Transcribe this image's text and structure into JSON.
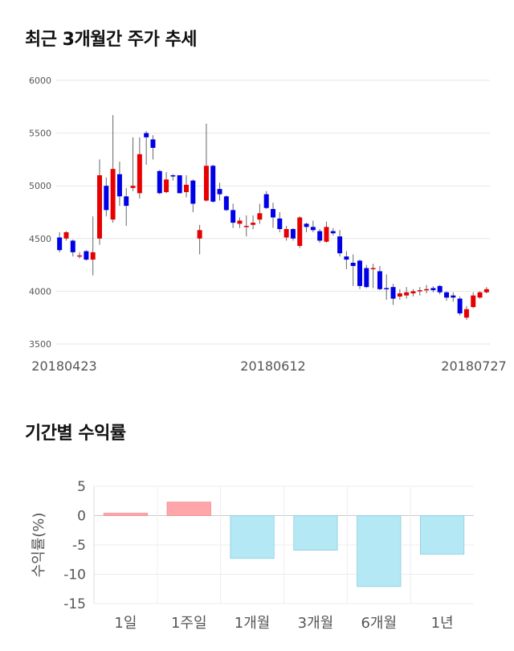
{
  "sections": {
    "price_title": "최근 3개월간 주가 추세",
    "return_title": "기간별 수익률"
  },
  "colors": {
    "up": "#e60000",
    "down": "#0000e6",
    "positive_bar": "#ffa6aa",
    "negative_bar": "#b3e8f4",
    "grid": "#e6e6e6"
  },
  "chart_data": [
    {
      "type": "candlestick",
      "title": "최근 3개월간 주가 추세",
      "ylim": [
        3500,
        6000
      ],
      "yticks": [
        3500,
        4000,
        4500,
        5000,
        5500,
        6000
      ],
      "xtick_labels": [
        "20180423",
        "20180612",
        "20180727"
      ],
      "grid": true,
      "candles": [
        [
          4510,
          4390,
          4560,
          4370
        ],
        [
          4500,
          4560,
          4570,
          4480
        ],
        [
          4480,
          4370,
          4490,
          4330
        ],
        [
          4330,
          4340,
          4370,
          4310
        ],
        [
          4380,
          4300,
          4390,
          4290
        ],
        [
          4300,
          4370,
          4710,
          4150
        ],
        [
          4500,
          5100,
          5250,
          4440
        ],
        [
          5000,
          4770,
          5080,
          4710
        ],
        [
          4680,
          5160,
          5670,
          4650
        ],
        [
          5110,
          4900,
          5230,
          4810
        ],
        [
          4900,
          4810,
          4980,
          4620
        ],
        [
          4980,
          5000,
          5460,
          4950
        ],
        [
          4930,
          5300,
          5460,
          4880
        ],
        [
          5500,
          5460,
          5520,
          5200
        ],
        [
          5440,
          5360,
          5480,
          5250
        ],
        [
          5140,
          4930,
          5150,
          4920
        ],
        [
          4940,
          5060,
          5130,
          4930
        ],
        [
          5100,
          5090,
          5110,
          5050
        ],
        [
          5100,
          4930,
          5100,
          4930
        ],
        [
          4940,
          5010,
          5100,
          4890
        ],
        [
          5050,
          4830,
          5060,
          4750
        ],
        [
          4500,
          4580,
          4630,
          4350
        ],
        [
          4860,
          5190,
          5590,
          4850
        ],
        [
          5190,
          4850,
          5200,
          4840
        ],
        [
          4970,
          4920,
          5030,
          4860
        ],
        [
          4900,
          4770,
          4910,
          4760
        ],
        [
          4770,
          4650,
          4830,
          4600
        ],
        [
          4640,
          4670,
          4700,
          4600
        ],
        [
          4610,
          4620,
          4720,
          4520
        ],
        [
          4630,
          4650,
          4720,
          4590
        ],
        [
          4680,
          4740,
          4830,
          4640
        ],
        [
          4920,
          4790,
          4950,
          4780
        ],
        [
          4780,
          4700,
          4840,
          4600
        ],
        [
          4690,
          4590,
          4750,
          4560
        ],
        [
          4510,
          4590,
          4620,
          4480
        ],
        [
          4590,
          4500,
          4600,
          4480
        ],
        [
          4430,
          4700,
          4710,
          4410
        ],
        [
          4640,
          4610,
          4650,
          4560
        ],
        [
          4610,
          4580,
          4670,
          4560
        ],
        [
          4570,
          4480,
          4590,
          4460
        ],
        [
          4470,
          4610,
          4660,
          4460
        ],
        [
          4570,
          4550,
          4600,
          4530
        ],
        [
          4520,
          4360,
          4580,
          4330
        ],
        [
          4330,
          4300,
          4380,
          4210
        ],
        [
          4270,
          4240,
          4350,
          4050
        ],
        [
          4290,
          4050,
          4300,
          4020
        ],
        [
          4220,
          4040,
          4250,
          4030
        ],
        [
          4220,
          4220,
          4260,
          4030
        ],
        [
          4190,
          4020,
          4240,
          4010
        ],
        [
          4030,
          4020,
          4160,
          3920
        ],
        [
          4040,
          3930,
          4070,
          3870
        ],
        [
          3950,
          3980,
          4020,
          3920
        ],
        [
          3960,
          3990,
          4040,
          3930
        ],
        [
          3980,
          4000,
          4020,
          3950
        ],
        [
          4000,
          4010,
          4040,
          3960
        ],
        [
          4020,
          4020,
          4060,
          3980
        ],
        [
          4030,
          4010,
          4050,
          3990
        ],
        [
          4050,
          3990,
          4060,
          3970
        ],
        [
          3990,
          3940,
          4000,
          3910
        ],
        [
          3960,
          3940,
          3990,
          3900
        ],
        [
          3930,
          3790,
          3950,
          3770
        ],
        [
          3750,
          3830,
          3860,
          3730
        ],
        [
          3850,
          3960,
          3990,
          3840
        ],
        [
          3940,
          3990,
          4000,
          3930
        ],
        [
          3990,
          4020,
          4040,
          3980
        ]
      ]
    },
    {
      "type": "bar",
      "title": "기간별 수익률",
      "ylabel": "수익률(%)",
      "ylim": [
        -15,
        5
      ],
      "yticks": [
        5,
        0,
        -5,
        -10,
        -15
      ],
      "categories": [
        "1일",
        "1주일",
        "1개월",
        "3개월",
        "6개월",
        "1년"
      ],
      "values": [
        0.4,
        2.3,
        -7.3,
        -5.9,
        -12.1,
        -6.6
      ]
    }
  ]
}
